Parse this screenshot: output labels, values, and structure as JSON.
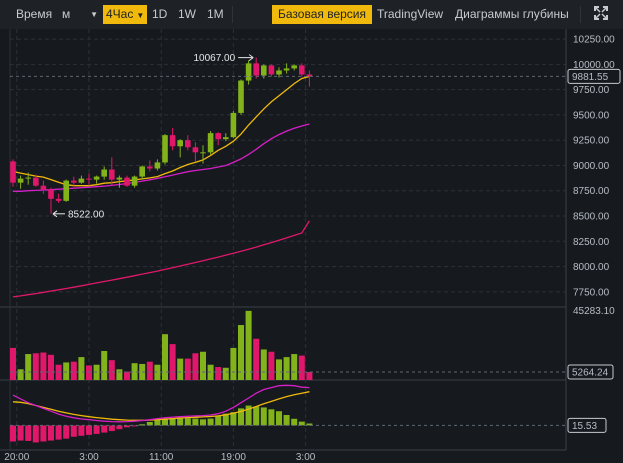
{
  "toolbar": {
    "time_label": "Время",
    "minute_select": "м",
    "active_interval": "4Час",
    "intervals": [
      "1D",
      "1W",
      "1M"
    ],
    "views": [
      "Базовая версия",
      "TradingView",
      "Диаграммы глубины"
    ],
    "active_view": "Базовая версия"
  },
  "colors": {
    "up": "#82b31a",
    "down": "#e0176b",
    "ma_short": "#f0b90b",
    "ma_mid": "#d61ec9",
    "ma_long": "#e0176b",
    "accent": "#f0b90b",
    "background": "#161a1e"
  },
  "chart_data": [
    {
      "type": "candlestick",
      "ylim": [
        7600,
        10350
      ],
      "y_ticks": [
        7750,
        8000,
        8250,
        8500,
        8750,
        9000,
        9250,
        9500,
        9750,
        10000,
        10250
      ],
      "y_tick_labels": [
        "7750.00",
        "8000.00",
        "8250.00",
        "8500.00",
        "8750.00",
        "9000.00",
        "9250.00",
        "9500.00",
        "9750.00",
        "10000.00",
        "10250.00"
      ],
      "current_price": 9881.55,
      "current_price_label": "9881.55",
      "high_annotation": {
        "value": 10067.0,
        "label": "10067.00"
      },
      "low_annotation": {
        "value": 8522.0,
        "label": "8522.00"
      },
      "candles": [
        {
          "o": 9040,
          "h": 9060,
          "l": 8790,
          "c": 8830
        },
        {
          "o": 8830,
          "h": 8900,
          "l": 8770,
          "c": 8870
        },
        {
          "o": 8870,
          "h": 8930,
          "l": 8810,
          "c": 8880
        },
        {
          "o": 8880,
          "h": 8910,
          "l": 8790,
          "c": 8800
        },
        {
          "o": 8800,
          "h": 8850,
          "l": 8720,
          "c": 8760
        },
        {
          "o": 8760,
          "h": 8780,
          "l": 8522,
          "c": 8670
        },
        {
          "o": 8670,
          "h": 8720,
          "l": 8630,
          "c": 8650
        },
        {
          "o": 8650,
          "h": 8860,
          "l": 8640,
          "c": 8850
        },
        {
          "o": 8850,
          "h": 8890,
          "l": 8800,
          "c": 8830
        },
        {
          "o": 8830,
          "h": 8900,
          "l": 8820,
          "c": 8870
        },
        {
          "o": 8870,
          "h": 8920,
          "l": 8800,
          "c": 8860
        },
        {
          "o": 8860,
          "h": 8900,
          "l": 8820,
          "c": 8890
        },
        {
          "o": 8890,
          "h": 8990,
          "l": 8860,
          "c": 8960
        },
        {
          "o": 8960,
          "h": 9080,
          "l": 8800,
          "c": 8860
        },
        {
          "o": 8860,
          "h": 8900,
          "l": 8780,
          "c": 8880
        },
        {
          "o": 8880,
          "h": 8900,
          "l": 8790,
          "c": 8800
        },
        {
          "o": 8800,
          "h": 8900,
          "l": 8780,
          "c": 8890
        },
        {
          "o": 8890,
          "h": 9000,
          "l": 8860,
          "c": 8990
        },
        {
          "o": 8990,
          "h": 9050,
          "l": 8940,
          "c": 8970
        },
        {
          "o": 8970,
          "h": 9060,
          "l": 8950,
          "c": 9030
        },
        {
          "o": 9030,
          "h": 9310,
          "l": 9010,
          "c": 9300
        },
        {
          "o": 9300,
          "h": 9370,
          "l": 9150,
          "c": 9190
        },
        {
          "o": 9190,
          "h": 9260,
          "l": 9080,
          "c": 9250
        },
        {
          "o": 9250,
          "h": 9300,
          "l": 9150,
          "c": 9180
        },
        {
          "o": 9180,
          "h": 9230,
          "l": 9040,
          "c": 9130
        },
        {
          "o": 9130,
          "h": 9200,
          "l": 9020,
          "c": 9130
        },
        {
          "o": 9130,
          "h": 9340,
          "l": 9110,
          "c": 9320
        },
        {
          "o": 9320,
          "h": 9330,
          "l": 9200,
          "c": 9260
        },
        {
          "o": 9260,
          "h": 9320,
          "l": 9240,
          "c": 9280
        },
        {
          "o": 9280,
          "h": 9540,
          "l": 9270,
          "c": 9520
        },
        {
          "o": 9520,
          "h": 9850,
          "l": 9500,
          "c": 9840
        },
        {
          "o": 9840,
          "h": 10040,
          "l": 9800,
          "c": 10010
        },
        {
          "o": 10010,
          "h": 10067,
          "l": 9860,
          "c": 9890
        },
        {
          "o": 9890,
          "h": 10000,
          "l": 9860,
          "c": 9990
        },
        {
          "o": 9990,
          "h": 10000,
          "l": 9880,
          "c": 9900
        },
        {
          "o": 9900,
          "h": 9970,
          "l": 9870,
          "c": 9940
        },
        {
          "o": 9940,
          "h": 10010,
          "l": 9910,
          "c": 9960
        },
        {
          "o": 9960,
          "h": 10000,
          "l": 9940,
          "c": 9990
        },
        {
          "o": 9990,
          "h": 10010,
          "l": 9880,
          "c": 9900
        },
        {
          "o": 9900,
          "h": 9940,
          "l": 9780,
          "c": 9882
        }
      ],
      "ma_short": [
        8940,
        8925,
        8910,
        8895,
        8885,
        8860,
        8835,
        8810,
        8800,
        8800,
        8800,
        8810,
        8825,
        8830,
        8840,
        8848,
        8857,
        8867,
        8877,
        8890,
        8920,
        8945,
        8980,
        9010,
        9030,
        9055,
        9100,
        9150,
        9190,
        9240,
        9310,
        9400,
        9480,
        9560,
        9630,
        9690,
        9750,
        9810,
        9860,
        9880
      ],
      "ma_mid": [
        8745,
        8745,
        8750,
        8753,
        8757,
        8760,
        8765,
        8770,
        8775,
        8780,
        8785,
        8790,
        8796,
        8803,
        8812,
        8822,
        8833,
        8845,
        8858,
        8872,
        8888,
        8905,
        8922,
        8938,
        8950,
        8960,
        8970,
        8985,
        9000,
        9030,
        9065,
        9110,
        9160,
        9215,
        9265,
        9305,
        9340,
        9368,
        9390,
        9410
      ],
      "ma_long": [
        7700,
        7710,
        7722,
        7733,
        7745,
        7758,
        7770,
        7783,
        7796,
        7810,
        7824,
        7838,
        7852,
        7866,
        7880,
        7895,
        7910,
        7925,
        7940,
        7955,
        7972,
        7989,
        8006,
        8023,
        8040,
        8058,
        8076,
        8094,
        8113,
        8132,
        8152,
        8172,
        8193,
        8215,
        8237,
        8260,
        8284,
        8308,
        8332,
        8452
      ]
    },
    {
      "type": "bar",
      "name": "volume",
      "ylim": [
        0,
        46500
      ],
      "top_label": "45283.10",
      "current_value_label": "5264.24",
      "values": [
        21000,
        7000,
        17000,
        17500,
        18000,
        16500,
        10000,
        11500,
        12000,
        15000,
        9500,
        10000,
        19000,
        13000,
        7000,
        5500,
        11000,
        10500,
        12000,
        10000,
        30000,
        23500,
        14000,
        14000,
        17500,
        18500,
        10000,
        8500,
        8000,
        21000,
        36000,
        45283,
        27000,
        20000,
        18500,
        13500,
        15000,
        17000,
        16000,
        5264
      ]
    },
    {
      "type": "histogram",
      "name": "indicator",
      "ylim": [
        -1.3,
        2.4
      ],
      "current_value_label": "15.53",
      "hist": [
        -0.85,
        -0.8,
        -0.82,
        -0.9,
        -0.85,
        -0.8,
        -0.75,
        -0.7,
        -0.6,
        -0.55,
        -0.5,
        -0.45,
        -0.38,
        -0.3,
        -0.2,
        -0.1,
        -0.02,
        0.06,
        0.18,
        0.3,
        0.34,
        0.38,
        0.4,
        0.38,
        0.36,
        0.32,
        0.36,
        0.5,
        0.62,
        0.7,
        0.9,
        1.05,
        1.0,
        0.95,
        0.85,
        0.75,
        0.55,
        0.35,
        0.2,
        0.1
      ],
      "line_fast": [
        1.6,
        1.4,
        1.2,
        1.05,
        0.9,
        0.75,
        0.6,
        0.48,
        0.4,
        0.34,
        0.3,
        0.26,
        0.22,
        0.2,
        0.19,
        0.2,
        0.22,
        0.26,
        0.3,
        0.36,
        0.4,
        0.44,
        0.46,
        0.48,
        0.5,
        0.52,
        0.55,
        0.62,
        0.75,
        0.95,
        1.2,
        1.45,
        1.7,
        1.9,
        2.0,
        2.1,
        2.12,
        2.1,
        2.02,
        2.0
      ],
      "line_slow": [
        1.25,
        1.22,
        1.15,
        1.05,
        0.95,
        0.85,
        0.75,
        0.66,
        0.58,
        0.52,
        0.46,
        0.41,
        0.37,
        0.33,
        0.3,
        0.28,
        0.27,
        0.27,
        0.28,
        0.3,
        0.33,
        0.36,
        0.39,
        0.41,
        0.43,
        0.45,
        0.47,
        0.5,
        0.56,
        0.64,
        0.74,
        0.86,
        1.0,
        1.14,
        1.27,
        1.4,
        1.52,
        1.62,
        1.7,
        1.78
      ]
    }
  ],
  "x_axis": {
    "labels": [
      "20:00",
      "3:00",
      "11:00",
      "19:00",
      "3:00"
    ],
    "label_positions_index": [
      0.5,
      10,
      19.5,
      29,
      38.5
    ]
  }
}
